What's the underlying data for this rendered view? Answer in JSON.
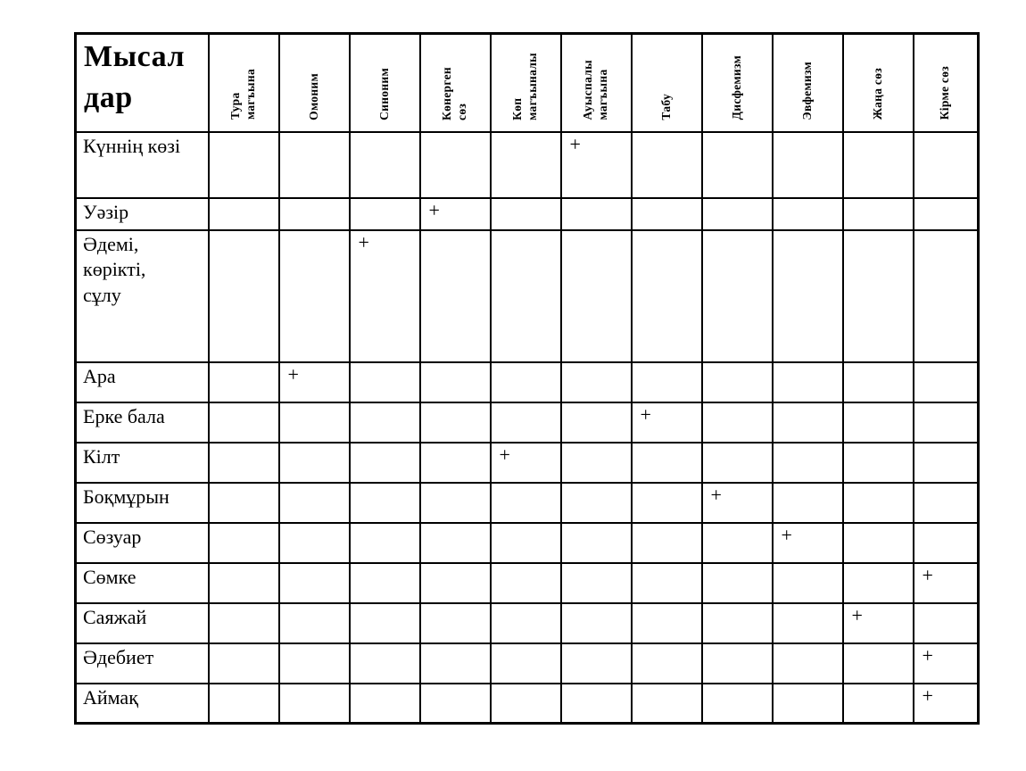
{
  "page": {
    "background": "#ffffff",
    "border_color": "#000000"
  },
  "table": {
    "corner_header": "Мысал\nдар",
    "mark_symbol": "+",
    "columns": [
      "Тура\nмагъына",
      "Омоним",
      "Синоним",
      "Көнерген\nсөз",
      "Көп\nмагъыналы",
      "Ауыспалы\nмагъына",
      "Табу",
      "Дисфемизм",
      "Эвфемизм",
      "Жаңа сөз",
      "Кірме сөз"
    ],
    "rows": [
      {
        "label": "Күннің көзі",
        "marks": [
          0,
          0,
          0,
          0,
          0,
          1,
          0,
          0,
          0,
          0,
          0
        ]
      },
      {
        "label": "Уәзір",
        "marks": [
          0,
          0,
          0,
          1,
          0,
          0,
          0,
          0,
          0,
          0,
          0
        ]
      },
      {
        "label": "Әдемі,\nкөрікті,\nсұлу",
        "marks": [
          0,
          0,
          1,
          0,
          0,
          0,
          0,
          0,
          0,
          0,
          0
        ]
      },
      {
        "label": "Ара",
        "marks": [
          0,
          1,
          0,
          0,
          0,
          0,
          0,
          0,
          0,
          0,
          0
        ]
      },
      {
        "label": "Ерке бала",
        "marks": [
          0,
          0,
          0,
          0,
          0,
          0,
          1,
          0,
          0,
          0,
          0
        ]
      },
      {
        "label": "Кілт",
        "marks": [
          0,
          0,
          0,
          0,
          1,
          0,
          0,
          0,
          0,
          0,
          0
        ]
      },
      {
        "label": "Боқмұрын",
        "marks": [
          0,
          0,
          0,
          0,
          0,
          0,
          0,
          1,
          0,
          0,
          0
        ]
      },
      {
        "label": "Сөзуар",
        "marks": [
          0,
          0,
          0,
          0,
          0,
          0,
          0,
          0,
          1,
          0,
          0
        ]
      },
      {
        "label": "Сөмке",
        "marks": [
          0,
          0,
          0,
          0,
          0,
          0,
          0,
          0,
          0,
          0,
          1
        ]
      },
      {
        "label": "Саяжай",
        "marks": [
          0,
          0,
          0,
          0,
          0,
          0,
          0,
          0,
          0,
          1,
          0
        ]
      },
      {
        "label": "Әдебиет",
        "marks": [
          0,
          0,
          0,
          0,
          0,
          0,
          0,
          0,
          0,
          0,
          1
        ]
      },
      {
        "label": "Аймақ",
        "marks": [
          0,
          0,
          0,
          0,
          0,
          0,
          0,
          0,
          0,
          0,
          1
        ]
      }
    ]
  }
}
